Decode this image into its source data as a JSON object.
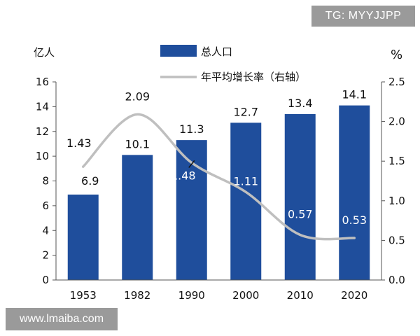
{
  "watermark_top": "TG: MYYJJPP",
  "watermark_bottom": "www.lmaiba.com",
  "colors": {
    "bar": "#1f4e9c",
    "line": "#bfbfbf",
    "axis": "#555555",
    "text": "#111111"
  },
  "chart_data": {
    "type": "bar",
    "categories": [
      "1953",
      "1982",
      "1990",
      "2000",
      "2010",
      "2020"
    ],
    "y_left_unit": "亿人",
    "y_right_unit": "%",
    "y_left_ticks": [
      "0",
      "2",
      "4",
      "6",
      "8",
      "10",
      "12",
      "14",
      "16"
    ],
    "y_right_ticks": [
      "0.0",
      "0.5",
      "1.0",
      "1.5",
      "2.0",
      "2.5"
    ],
    "ylim_left": [
      0,
      16
    ],
    "ylim_right": [
      0,
      2.5
    ],
    "legend_placement": "top-center",
    "series": [
      {
        "name": "总人口",
        "type": "bar",
        "axis": "left",
        "values": [
          6.9,
          10.1,
          11.3,
          12.7,
          13.4,
          14.1
        ],
        "labels": [
          "6.9",
          "10.1",
          "11.3",
          "12.7",
          "13.4",
          "14.1"
        ]
      },
      {
        "name": "年平均增长率（右轴）",
        "type": "line",
        "axis": "right",
        "values": [
          1.43,
          2.09,
          1.48,
          1.11,
          0.57,
          0.53
        ],
        "labels": [
          "1.43",
          "2.09",
          "1.48",
          "1.11",
          "0.57",
          "0.53"
        ]
      }
    ]
  }
}
